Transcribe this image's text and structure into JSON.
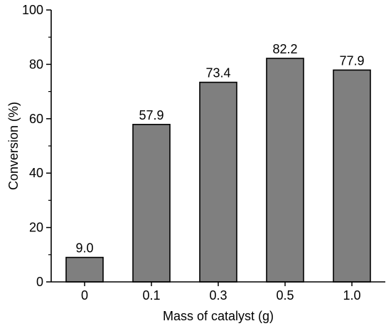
{
  "chart_data": {
    "type": "bar",
    "title": "",
    "xlabel": "Mass of catalyst (g)",
    "ylabel": "Conversion (%)",
    "categories": [
      "0",
      "0.1",
      "0.3",
      "0.5",
      "1.0"
    ],
    "values": [
      9.0,
      57.9,
      73.4,
      82.2,
      77.9
    ],
    "data_labels": [
      "9.0",
      "57.9",
      "73.4",
      "82.2",
      "77.9"
    ],
    "ylim": [
      0,
      100
    ],
    "yticks": [
      "0",
      "20",
      "40",
      "60",
      "80",
      "100"
    ],
    "grid": false,
    "legend": "none",
    "colors": {
      "bar_fill": "#7f7f7f",
      "bar_stroke": "#000000",
      "axis": "#000000"
    }
  }
}
